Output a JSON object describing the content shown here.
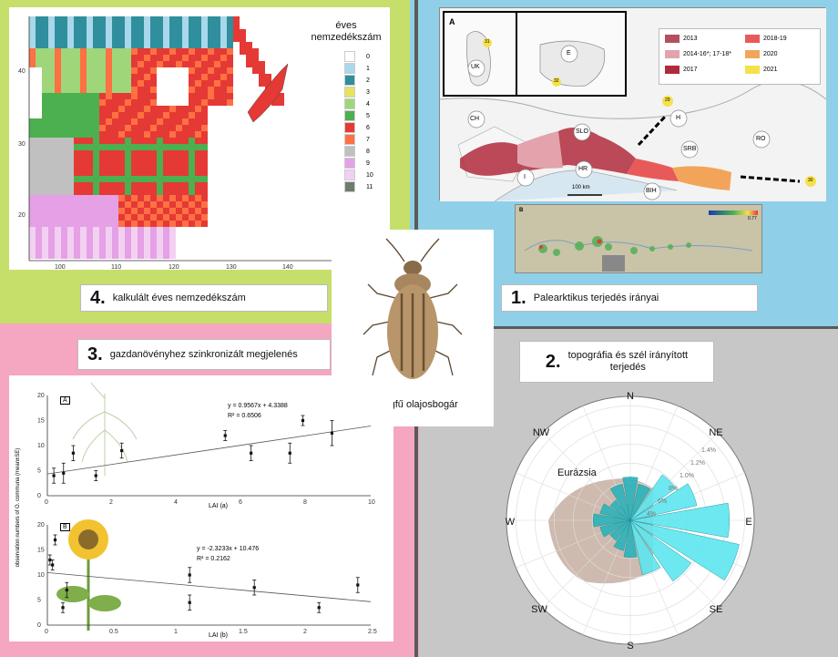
{
  "panel4": {
    "num": "4.",
    "caption": "kalkulált éves nemzedékszám",
    "legend_title": "éves\nnemzedékszám",
    "legend_title_l1": "éves",
    "legend_title_l2": "nemzedékszám",
    "legend": [
      {
        "label": "0",
        "color": "#ffffff"
      },
      {
        "label": "1",
        "color": "#a8d8ea"
      },
      {
        "label": "2",
        "color": "#2f8f9d"
      },
      {
        "label": "3",
        "color": "#e8e25c"
      },
      {
        "label": "4",
        "color": "#9fd67a"
      },
      {
        "label": "5",
        "color": "#4caf50"
      },
      {
        "label": "6",
        "color": "#e53935"
      },
      {
        "label": "7",
        "color": "#ff7043"
      },
      {
        "label": "8",
        "color": "#c0c0c0"
      },
      {
        "label": "9",
        "color": "#e6a0e6"
      },
      {
        "label": "10",
        "color": "#f2d0f2"
      },
      {
        "label": "11",
        "color": "#6e7b6e"
      }
    ],
    "lat_ticks": [
      "40",
      "30",
      "20"
    ],
    "lon_ticks": [
      "100",
      "110",
      "120",
      "130",
      "140"
    ]
  },
  "panel1": {
    "num": "1.",
    "caption": "Palearktikus terjedés irányai",
    "inset_label_a": "A",
    "inset_label_b": "B",
    "countries": [
      "UK",
      "E",
      "CH",
      "I",
      "SLO",
      "HR",
      "BIH",
      "SRB",
      "H",
      "RO"
    ],
    "legend": [
      {
        "label": "2013",
        "color": "#b3505f"
      },
      {
        "label": "2014-16*; 17-18*",
        "color": "#e2a3ad"
      },
      {
        "label": "2017",
        "color": "#b02a3c"
      },
      {
        "label": "2018-19",
        "color": "#e85a5a"
      },
      {
        "label": "2020",
        "color": "#f2a55a"
      },
      {
        "label": "2021",
        "color": "#f5e14a"
      }
    ],
    "scale": "100 km",
    "site_labels": [
      "31",
      "32",
      "29",
      "30"
    ],
    "colorbar_max": "0.77"
  },
  "center": {
    "caption": "parlagfű olajosbogár"
  },
  "panel3": {
    "num": "3.",
    "caption": "gazdanövényhez szinkronizált megjelenés",
    "ylabel": "observation numbers of O. communa (mean±SE)",
    "chartA": {
      "tag": "A",
      "equation": "y = 0.9567x + 4.3388",
      "r2": "R² = 0.6506",
      "xlabel": "LAI (a)",
      "xticks": [
        "0",
        "2",
        "4",
        "6",
        "8",
        "10"
      ],
      "yticks": [
        "0",
        "5",
        "10",
        "15",
        "20"
      ]
    },
    "chartB": {
      "tag": "B",
      "equation": "y = -2.3233x + 10.476",
      "r2": "R² = 0.2162",
      "xlabel": "LAI (b)",
      "xticks": [
        "0",
        "0.5",
        "1",
        "1.5",
        "2",
        "2.5"
      ],
      "yticks": [
        "0",
        "5",
        "10",
        "15",
        "20"
      ]
    }
  },
  "panel2": {
    "num": "2.",
    "caption_l1": "topográfia és szél irányított",
    "caption_l2": "terjedés",
    "region": "Eurázsia",
    "directions": [
      "N",
      "NE",
      "E",
      "SE",
      "S",
      "SW",
      "W",
      "NW"
    ],
    "rings": [
      "1.4%",
      "1.2%",
      "1.0%",
      "8%",
      "6%",
      "4%"
    ]
  },
  "chart_data": [
    {
      "type": "scatter",
      "title": "",
      "xlabel": "LAI (a)",
      "ylabel": "observation numbers of O. communa (mean±SE)",
      "xlim": [
        0,
        10
      ],
      "ylim": [
        0,
        20
      ],
      "series": [
        {
          "x": [
            0.2,
            0.5,
            0.8,
            1.5,
            2.3,
            5.5,
            6.3,
            7.5,
            7.9,
            8.8
          ],
          "y": [
            4,
            4.5,
            8.5,
            4,
            9,
            12,
            8.5,
            8.5,
            15,
            12.5
          ],
          "err": [
            1.5,
            2,
            1.5,
            1,
            1.5,
            1,
            1.5,
            2,
            1,
            2.5
          ]
        }
      ],
      "trend": {
        "slope": 0.9567,
        "intercept": 4.3388
      }
    },
    {
      "type": "scatter",
      "title": "",
      "xlabel": "LAI (b)",
      "ylabel": "observation numbers of O. communa (mean±SE)",
      "xlim": [
        0,
        2.5
      ],
      "ylim": [
        0,
        20
      ],
      "series": [
        {
          "x": [
            0.02,
            0.04,
            0.06,
            0.12,
            0.15,
            1.1,
            1.1,
            1.6,
            2.1,
            2.4
          ],
          "y": [
            13,
            12,
            17,
            3.5,
            7,
            10,
            4.5,
            7.5,
            3.5,
            8
          ],
          "err": [
            1,
            1,
            1,
            1,
            1.5,
            1.5,
            1.5,
            1.5,
            1,
            1.5
          ]
        }
      ],
      "trend": {
        "slope": -2.3233,
        "intercept": 10.476
      }
    }
  ]
}
